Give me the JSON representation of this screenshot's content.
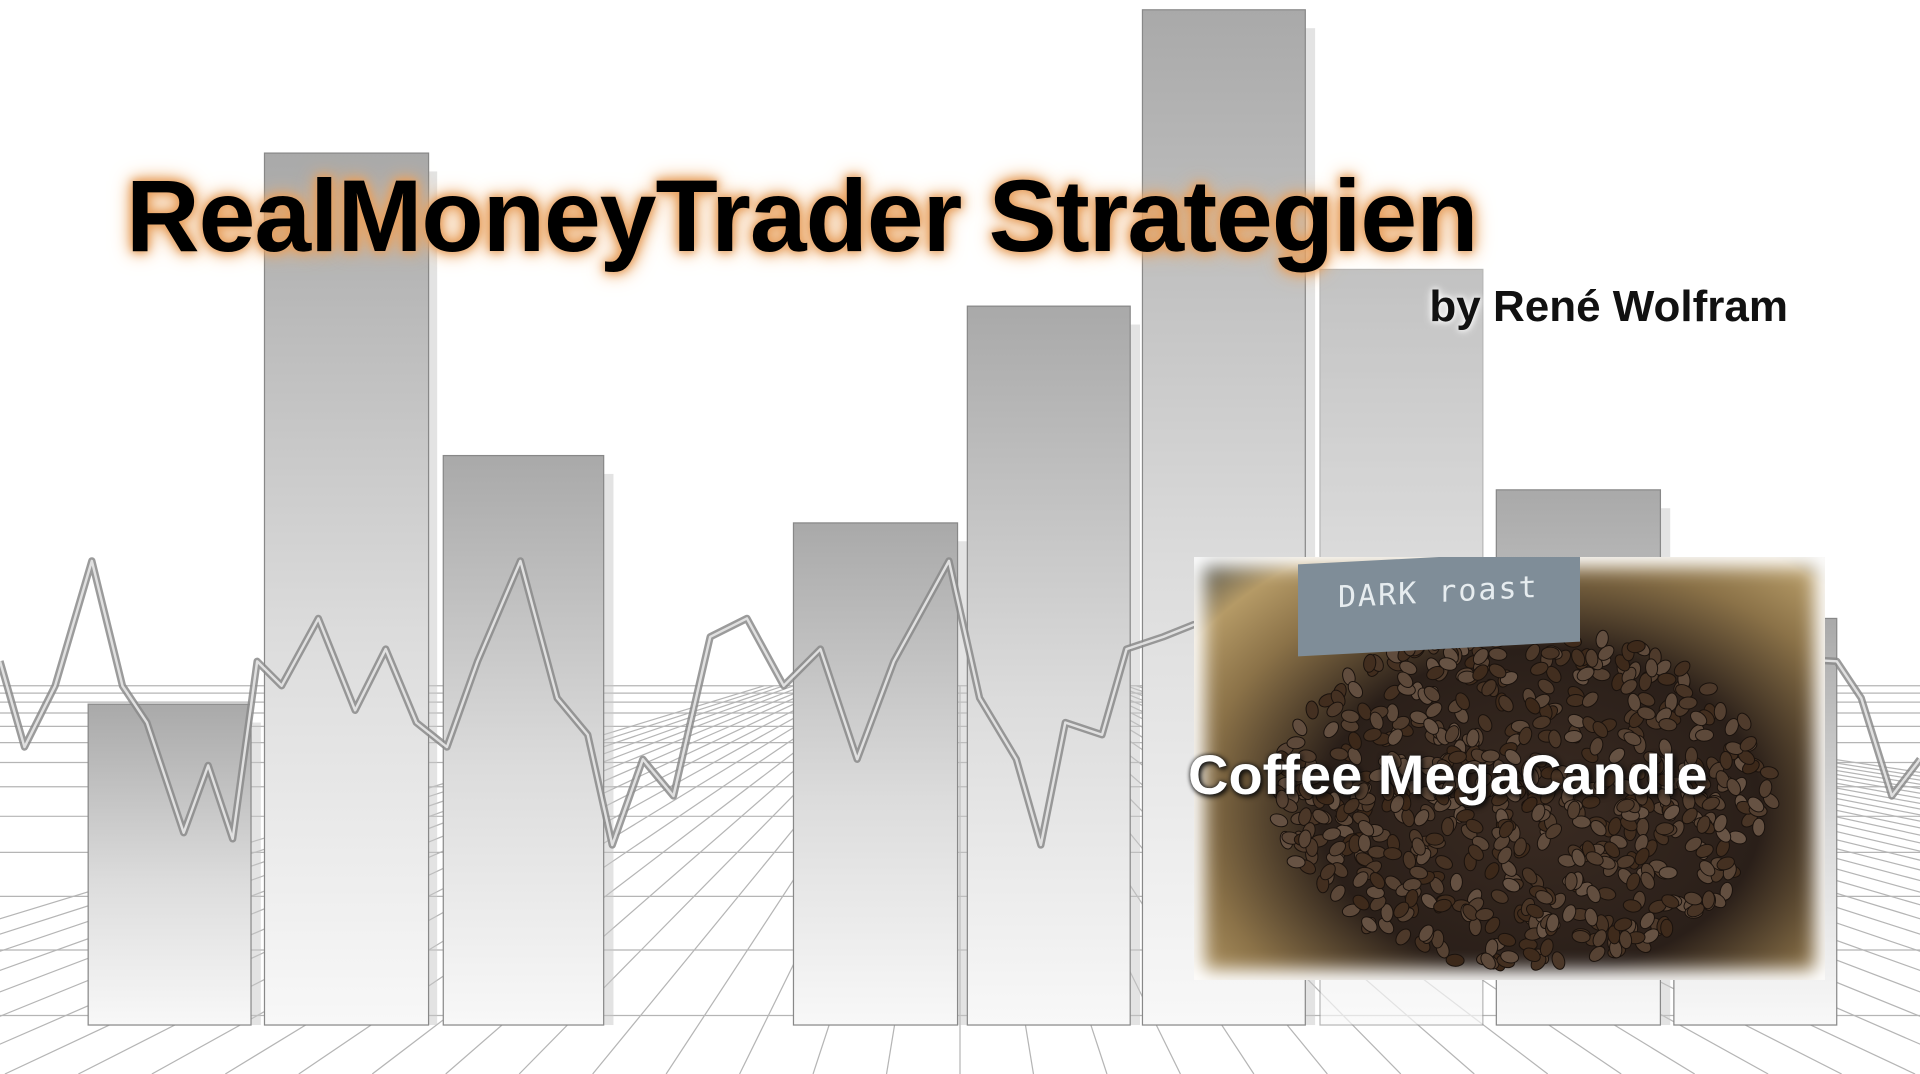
{
  "header": {
    "title": "RealMoneyTrader Strategien",
    "subtitle": "by René Wolfram"
  },
  "photo": {
    "tag": "DARK roast",
    "caption": "Coffee MegaCandle"
  }
}
